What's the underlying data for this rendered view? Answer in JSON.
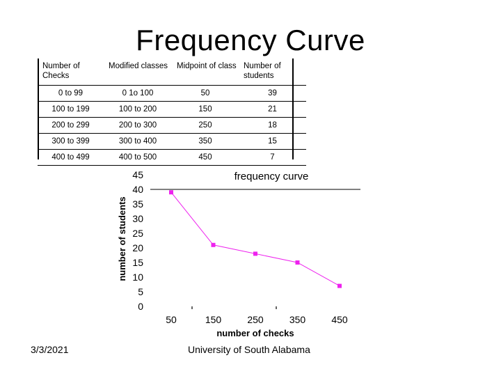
{
  "slide": {
    "title": "Frequency Curve",
    "date": "3/3/2021",
    "source": "University of South Alabama"
  },
  "table": {
    "headers": [
      "Number of Checks",
      "Modified classes",
      "Midpoint of class",
      "Number of students"
    ],
    "rows": [
      [
        "0 to 99",
        "0 1o 100",
        "50",
        "39"
      ],
      [
        "100 to 199",
        "100 to 200",
        "150",
        "21"
      ],
      [
        "200 to 299",
        "200 to 300",
        "250",
        "18"
      ],
      [
        "300 to 399",
        "300  to 400",
        "350",
        "15"
      ],
      [
        "400 to 499",
        "400 to 500",
        "450",
        "7"
      ]
    ]
  },
  "chart_data": {
    "type": "line",
    "title": "frequency curve",
    "xlabel": "number of checks",
    "ylabel": "number of students",
    "categories": [
      "50",
      "150",
      "250",
      "350",
      "450"
    ],
    "series": [
      {
        "name": "Number of students",
        "values": [
          39,
          21,
          18,
          15,
          7
        ],
        "color": "#ee22ee"
      }
    ],
    "yticks": [
      "0",
      "5",
      "10",
      "15",
      "20",
      "25",
      "30",
      "35",
      "40",
      "45"
    ],
    "ylim": [
      0,
      45
    ],
    "grid": false
  }
}
